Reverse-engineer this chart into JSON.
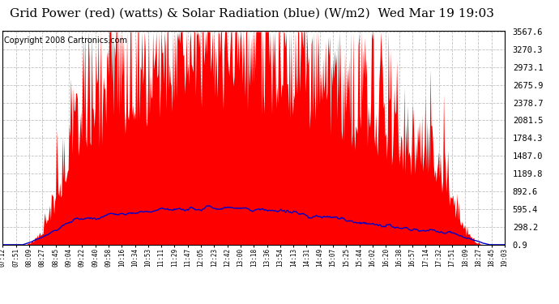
{
  "title": "Grid Power (red) (watts) & Solar Radiation (blue) (W/m2)  Wed Mar 19 19:03",
  "copyright": "Copyright 2008 Cartronics.com",
  "yticks": [
    0.9,
    298.2,
    595.4,
    892.6,
    1189.8,
    1487.0,
    1784.3,
    2081.5,
    2378.7,
    2675.9,
    2973.1,
    3270.3,
    3567.6
  ],
  "ymax": 3567.6,
  "ymin": 0.0,
  "x_labels": [
    "07:12",
    "07:51",
    "08:09",
    "08:27",
    "08:45",
    "09:04",
    "09:22",
    "09:40",
    "09:58",
    "10:16",
    "10:34",
    "10:53",
    "11:11",
    "11:29",
    "11:47",
    "12:05",
    "12:23",
    "12:42",
    "13:00",
    "13:18",
    "13:36",
    "13:54",
    "14:13",
    "14:31",
    "14:49",
    "15:07",
    "15:25",
    "15:44",
    "16:02",
    "16:20",
    "16:38",
    "16:57",
    "17:14",
    "17:32",
    "17:51",
    "18:09",
    "18:27",
    "18:45",
    "19:03"
  ],
  "background_color": "#ffffff",
  "grid_color": "#c0c0c0",
  "red_color": "#ff0000",
  "blue_color": "#0000cc",
  "title_fontsize": 11,
  "copyright_fontsize": 7,
  "figwidth": 6.9,
  "figheight": 3.75,
  "dpi": 100
}
